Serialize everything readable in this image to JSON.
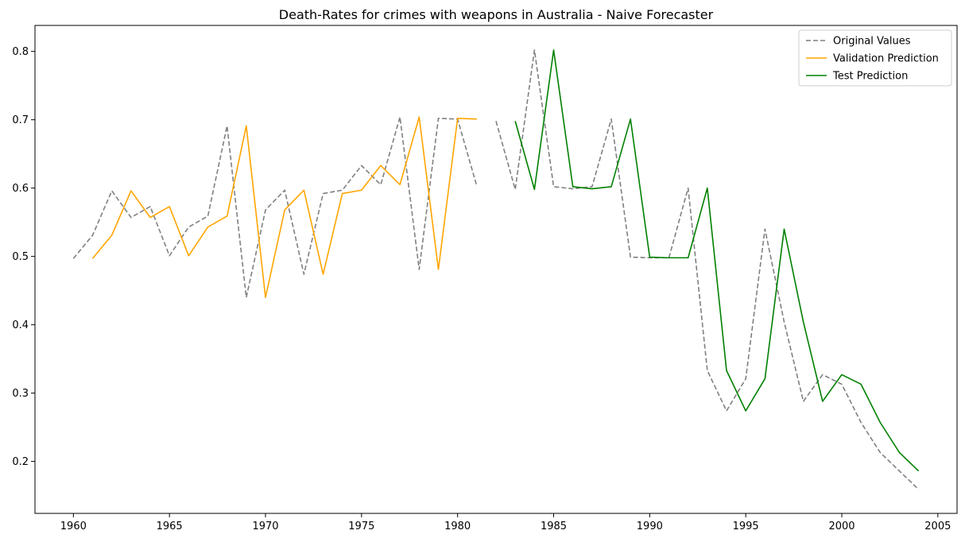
{
  "chart_data": {
    "type": "line",
    "title": "Death-Rates for crimes with weapons in Australia - Naive Forecaster",
    "xlabel": "",
    "ylabel": "",
    "xlim": [
      1958,
      2006
    ],
    "ylim": [
      0.124,
      0.838
    ],
    "x_ticks": [
      1960,
      1965,
      1970,
      1975,
      1980,
      1985,
      1990,
      1995,
      2000,
      2005
    ],
    "y_ticks": [
      0.2,
      0.3,
      0.4,
      0.5,
      0.6,
      0.7,
      0.8
    ],
    "legend_position": "top-right",
    "grid": false,
    "series": [
      {
        "name": "Original Values",
        "color": "#808080",
        "dash": true,
        "points": [
          [
            1960,
            0.497
          ],
          [
            1961,
            0.531
          ],
          [
            1962,
            0.596
          ],
          [
            1963,
            0.557
          ],
          [
            1964,
            0.573
          ],
          [
            1965,
            0.501
          ],
          [
            1966,
            0.543
          ],
          [
            1967,
            0.559
          ],
          [
            1968,
            0.691
          ],
          [
            1969,
            0.44
          ],
          [
            1970,
            0.568
          ],
          [
            1971,
            0.597
          ],
          [
            1972,
            0.474
          ],
          [
            1973,
            0.592
          ],
          [
            1974,
            0.597
          ],
          [
            1975,
            0.633
          ],
          [
            1976,
            0.605
          ],
          [
            1977,
            0.704
          ],
          [
            1978,
            0.481
          ],
          [
            1979,
            0.702
          ],
          [
            1980,
            0.701
          ],
          [
            1981,
            0.603
          ],
          null,
          [
            1982,
            0.698
          ],
          [
            1983,
            0.598
          ],
          [
            1984,
            0.802
          ],
          [
            1985,
            0.602
          ],
          [
            1986,
            0.599
          ],
          [
            1987,
            0.602
          ],
          [
            1988,
            0.701
          ],
          [
            1989,
            0.499
          ],
          [
            1990,
            0.498
          ],
          [
            1991,
            0.498
          ],
          [
            1992,
            0.6
          ],
          [
            1993,
            0.333
          ],
          [
            1994,
            0.274
          ],
          [
            1995,
            0.321
          ],
          [
            1996,
            0.54
          ],
          [
            1997,
            0.404
          ],
          [
            1998,
            0.288
          ],
          [
            1999,
            0.327
          ],
          [
            2000,
            0.313
          ],
          [
            2001,
            0.257
          ],
          [
            2002,
            0.213
          ],
          [
            2003,
            0.186
          ],
          [
            2004,
            0.159
          ]
        ]
      },
      {
        "name": "Validation Prediction",
        "color": "#ffa500",
        "dash": false,
        "points": [
          [
            1961,
            0.497
          ],
          [
            1962,
            0.531
          ],
          [
            1963,
            0.596
          ],
          [
            1964,
            0.557
          ],
          [
            1965,
            0.573
          ],
          [
            1966,
            0.501
          ],
          [
            1967,
            0.543
          ],
          [
            1968,
            0.559
          ],
          [
            1969,
            0.691
          ],
          [
            1970,
            0.44
          ],
          [
            1971,
            0.568
          ],
          [
            1972,
            0.597
          ],
          [
            1973,
            0.474
          ],
          [
            1974,
            0.592
          ],
          [
            1975,
            0.597
          ],
          [
            1976,
            0.633
          ],
          [
            1977,
            0.605
          ],
          [
            1978,
            0.704
          ],
          [
            1979,
            0.481
          ],
          [
            1980,
            0.702
          ],
          [
            1981,
            0.701
          ]
        ]
      },
      {
        "name": "Test Prediction",
        "color": "#008000",
        "dash": false,
        "points": [
          [
            1983,
            0.698
          ],
          [
            1984,
            0.598
          ],
          [
            1985,
            0.802
          ],
          [
            1986,
            0.602
          ],
          [
            1987,
            0.599
          ],
          [
            1988,
            0.602
          ],
          [
            1989,
            0.701
          ],
          [
            1990,
            0.499
          ],
          [
            1991,
            0.498
          ],
          [
            1992,
            0.498
          ],
          [
            1993,
            0.6
          ],
          [
            1994,
            0.333
          ],
          [
            1995,
            0.274
          ],
          [
            1996,
            0.321
          ],
          [
            1997,
            0.54
          ],
          [
            1998,
            0.404
          ],
          [
            1999,
            0.288
          ],
          [
            2000,
            0.327
          ],
          [
            2001,
            0.313
          ],
          [
            2002,
            0.257
          ],
          [
            2003,
            0.213
          ],
          [
            2004,
            0.186
          ]
        ]
      }
    ]
  }
}
